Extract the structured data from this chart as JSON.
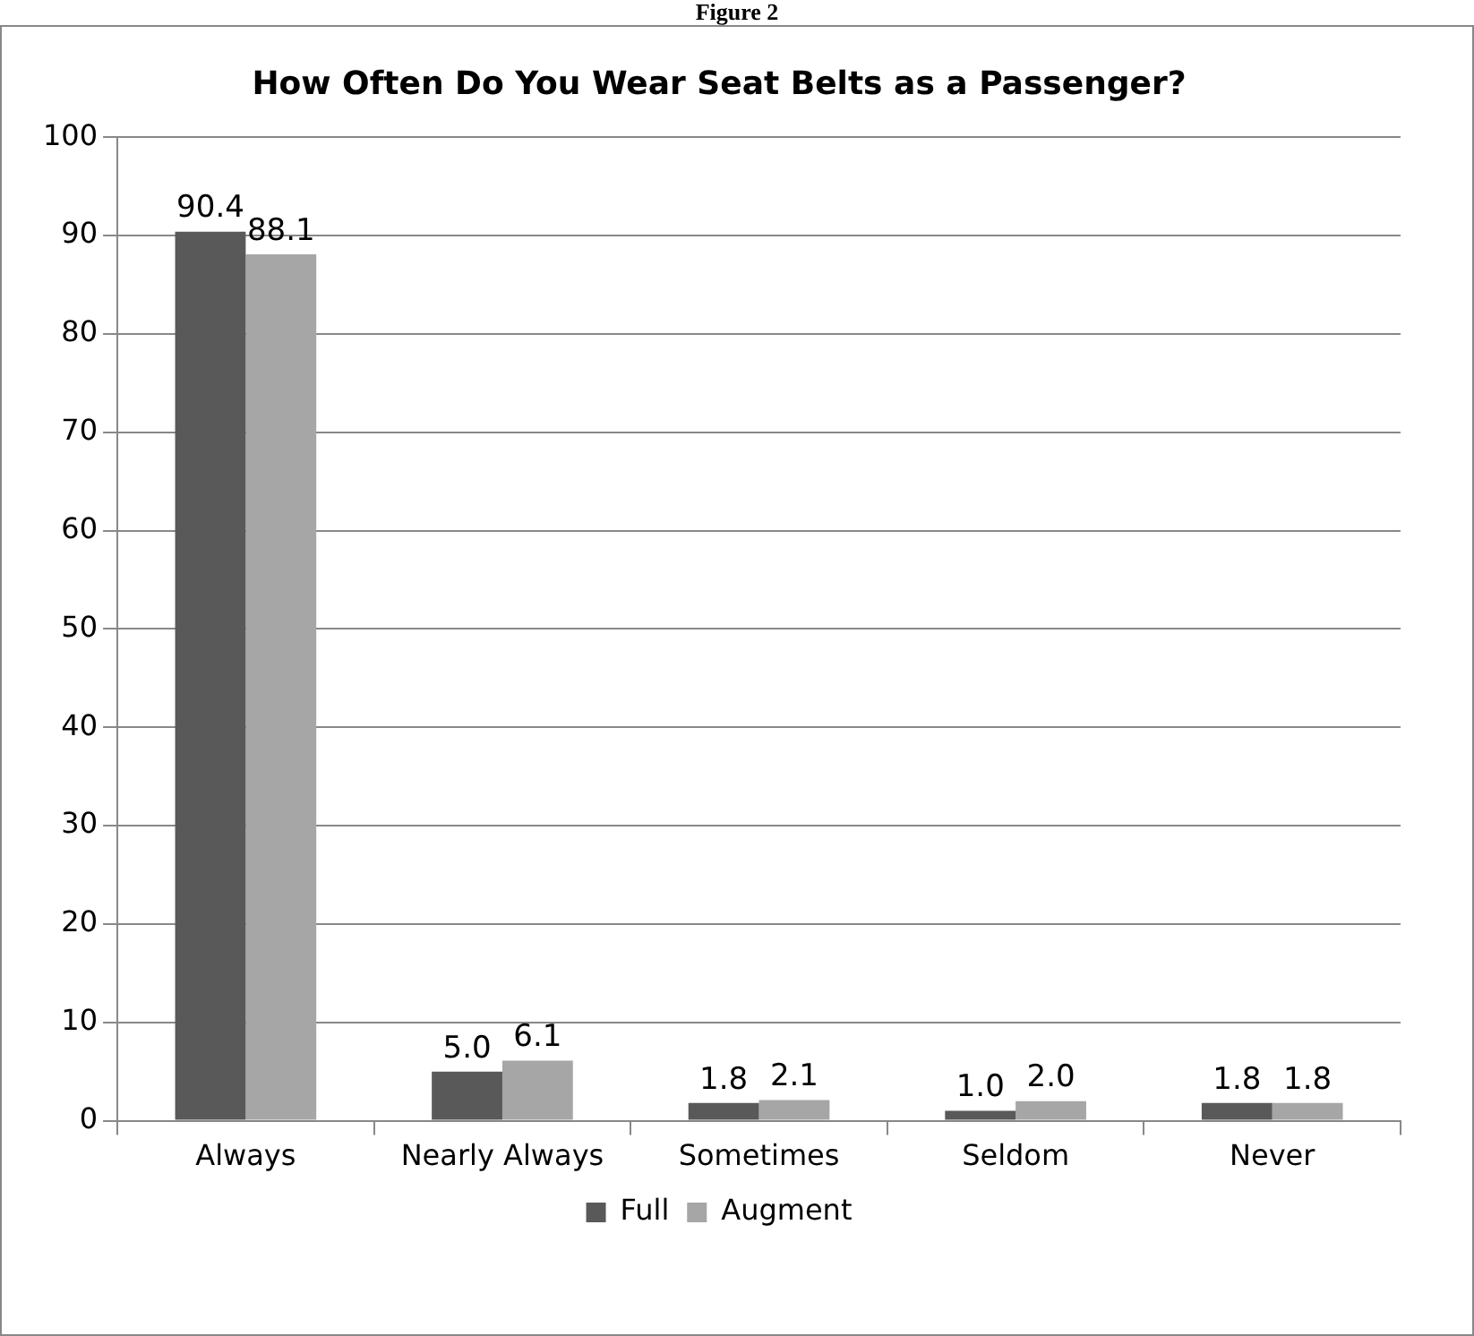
{
  "chart_data": {
    "type": "bar",
    "title": "How Often Do You Wear Seat Belts as a Passenger?",
    "annotations": [
      "Figure 2"
    ],
    "categories": [
      "Always",
      "Nearly Always",
      "Sometimes",
      "Seldom",
      "Never"
    ],
    "series": [
      {
        "name": "Full",
        "color": "#595959",
        "values": [
          90.4,
          5.0,
          1.8,
          1.0,
          1.8
        ],
        "value_labels": [
          "90.4",
          "5.0",
          "1.8",
          "1.0",
          "1.8"
        ]
      },
      {
        "name": "Augment",
        "color": "#a6a6a6",
        "values": [
          88.1,
          6.1,
          2.1,
          2.0,
          1.8
        ],
        "value_labels": [
          "88.1",
          "6.1",
          "2.1",
          "2.0",
          "1.8"
        ]
      }
    ],
    "ylim": [
      0,
      100
    ],
    "yticks": [
      0,
      10,
      20,
      30,
      40,
      50,
      60,
      70,
      80,
      90,
      100
    ],
    "grid": "y",
    "legend": "bottom"
  }
}
